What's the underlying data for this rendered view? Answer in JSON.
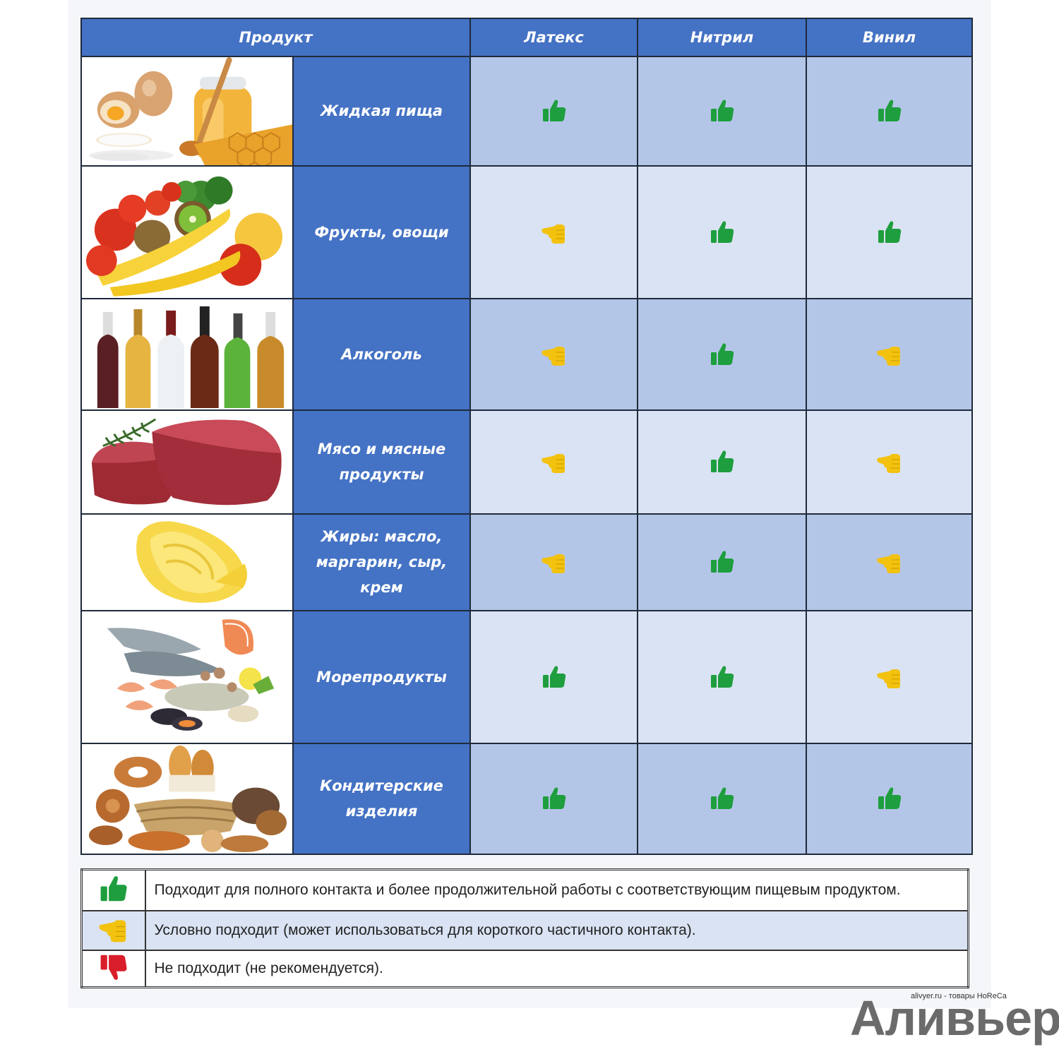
{
  "table": {
    "headers": [
      "Продукт",
      "Латекс",
      "Нитрил",
      "Винил"
    ],
    "rows": [
      {
        "name": "Жидкая пища",
        "image": "eggs-honey",
        "ratings": [
          "good",
          "good",
          "good"
        ]
      },
      {
        "name": "Фрукты, овощи",
        "image": "fruits-vegetables",
        "ratings": [
          "conditional",
          "good",
          "good"
        ]
      },
      {
        "name": "Алкоголь",
        "image": "bottles",
        "ratings": [
          "conditional",
          "good",
          "conditional"
        ]
      },
      {
        "name": "Мясо и мясные продукты",
        "image": "meat",
        "ratings": [
          "conditional",
          "good",
          "conditional"
        ]
      },
      {
        "name": "Жиры: масло, маргарин, сыр, крем",
        "image": "butter",
        "ratings": [
          "conditional",
          "good",
          "conditional"
        ]
      },
      {
        "name": "Морепродукты",
        "image": "seafood",
        "ratings": [
          "good",
          "good",
          "conditional"
        ]
      },
      {
        "name": "Кондитерские изделия",
        "image": "bakery",
        "ratings": [
          "good",
          "good",
          "good"
        ]
      }
    ]
  },
  "legend": [
    {
      "rating": "good",
      "text": "Подходит для полного контакта и более продолжительной работы с соответствующим пищевым продуктом."
    },
    {
      "rating": "conditional",
      "text": "Условно подходит (может использоваться для короткого частичного контакта)."
    },
    {
      "rating": "bad",
      "text": "Не подходит (не рекомендуется)."
    }
  ],
  "icons": {
    "good": "thumbs-up-icon",
    "conditional": "thumbs-sideways-icon",
    "bad": "thumbs-down-icon"
  },
  "colors": {
    "header": "#4472c4",
    "good": "#1e9e3e",
    "conditional": "#f2c20e",
    "bad": "#d81e2a"
  },
  "watermark": {
    "site": "alivyer.ru - товары HoReCa",
    "brand": "Аливьер"
  }
}
